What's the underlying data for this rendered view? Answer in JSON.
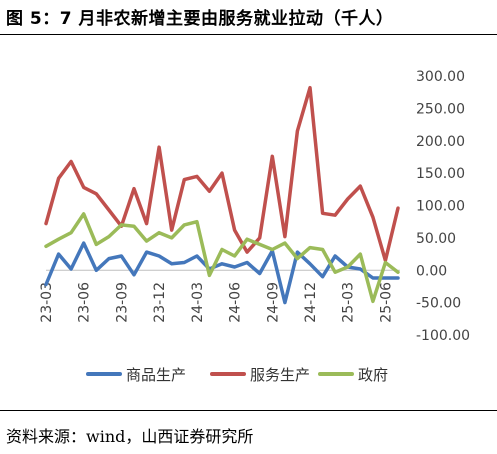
{
  "title": "图 5：7 月非农新增主要由服务就业拉动（千人）",
  "source": "资料来源：wind，山西证券研究所",
  "chart_data": {
    "type": "line",
    "y_ticks": [
      "300.00",
      "250.00",
      "200.00",
      "150.00",
      "100.00",
      "50.00",
      "0.00",
      "-50.00",
      "-100.00"
    ],
    "ylim": [
      -100,
      300
    ],
    "x_tick_labels": [
      "23-03",
      "23-06",
      "23-09",
      "23-12",
      "24-03",
      "24-06",
      "24-09",
      "24-12",
      "25-03",
      "25-06"
    ],
    "x": [
      "23-03",
      "23-04",
      "23-05",
      "23-06",
      "23-07",
      "23-08",
      "23-09",
      "23-10",
      "23-11",
      "23-12",
      "24-01",
      "24-02",
      "24-03",
      "24-04",
      "24-05",
      "24-06",
      "24-07",
      "24-08",
      "24-09",
      "24-10",
      "24-11",
      "24-12",
      "25-01",
      "25-02",
      "25-03",
      "25-04",
      "25-05",
      "25-06",
      "25-07"
    ],
    "series": [
      {
        "name": "商品生产",
        "color": "#4477BB",
        "values": [
          -22,
          25,
          2,
          42,
          0,
          18,
          22,
          -7,
          28,
          22,
          10,
          12,
          22,
          2,
          10,
          5,
          12,
          -5,
          30,
          -50,
          28,
          10,
          -10,
          22,
          5,
          2,
          -12,
          -12,
          -12
        ]
      },
      {
        "name": "服务生产",
        "color": "#C0504D",
        "values": [
          72,
          142,
          168,
          128,
          118,
          93,
          68,
          126,
          72,
          190,
          62,
          140,
          145,
          122,
          150,
          62,
          28,
          50,
          176,
          52,
          215,
          282,
          88,
          85,
          110,
          130,
          82,
          15,
          96
        ]
      },
      {
        "name": "政府",
        "color": "#9BBB59",
        "values": [
          37,
          48,
          58,
          87,
          40,
          52,
          70,
          68,
          45,
          58,
          50,
          70,
          75,
          -8,
          32,
          22,
          48,
          40,
          32,
          42,
          18,
          35,
          32,
          -3,
          5,
          25,
          -48,
          12,
          -3
        ]
      }
    ]
  }
}
